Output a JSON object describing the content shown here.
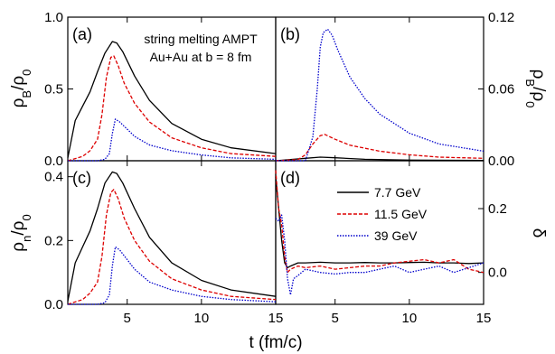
{
  "chart_data": [
    {
      "panel": "(a)",
      "type": "line",
      "ylabel": "ρ_B/ρ_0",
      "xlim": [
        1,
        15
      ],
      "ylim": [
        0,
        1.0
      ],
      "xticks": [
        5,
        10,
        15
      ],
      "yticks": [
        0.0,
        0.5,
        1.0
      ],
      "ytick_labels": [
        "0.0",
        "0.5",
        "1.0"
      ],
      "annotations": [
        "string melting AMPT",
        "Au+Au at b = 8 fm"
      ],
      "series": [
        {
          "color": "#000000",
          "style": "solid",
          "x": [
            1.0,
            1.5,
            2.0,
            2.5,
            3.0,
            3.5,
            4.0,
            4.3,
            4.7,
            5.5,
            6.5,
            8,
            10,
            12,
            15
          ],
          "y": [
            0.02,
            0.28,
            0.38,
            0.48,
            0.62,
            0.75,
            0.83,
            0.82,
            0.76,
            0.59,
            0.42,
            0.26,
            0.15,
            0.09,
            0.05
          ]
        },
        {
          "color": "#dd0000",
          "style": "dashed",
          "x": [
            1.0,
            2.0,
            2.5,
            3.0,
            3.3,
            3.6,
            3.9,
            4.1,
            4.4,
            4.8,
            5.5,
            6.5,
            8,
            10,
            12,
            15
          ],
          "y": [
            0.0,
            0.03,
            0.07,
            0.15,
            0.32,
            0.58,
            0.72,
            0.73,
            0.66,
            0.54,
            0.4,
            0.27,
            0.16,
            0.09,
            0.05,
            0.03
          ]
        },
        {
          "color": "#0000cc",
          "style": "dotted",
          "x": [
            1.0,
            3.0,
            3.5,
            3.8,
            4.0,
            4.2,
            4.5,
            5.0,
            5.5,
            6.5,
            8,
            10,
            12,
            15
          ],
          "y": [
            0.0,
            0.0,
            0.01,
            0.05,
            0.19,
            0.29,
            0.27,
            0.22,
            0.17,
            0.11,
            0.07,
            0.04,
            0.02,
            0.01
          ]
        }
      ]
    },
    {
      "panel": "(b)",
      "type": "line",
      "ylabel": "ρ_B/ρ_0",
      "xlim": [
        1,
        15
      ],
      "ylim": [
        0,
        0.12
      ],
      "xticks": [
        5,
        10,
        15
      ],
      "yticks": [
        0.0,
        0.06,
        0.12
      ],
      "ytick_labels": [
        "0.00",
        "0.06",
        "0.12"
      ],
      "series": [
        {
          "color": "#000000",
          "style": "solid",
          "x": [
            1.0,
            3.0,
            4.0,
            5.0,
            7.0,
            10,
            15
          ],
          "y": [
            0.0,
            0.002,
            0.003,
            0.0025,
            0.0012,
            0.0005,
            0.0002
          ]
        },
        {
          "color": "#dd0000",
          "style": "dashed",
          "x": [
            1.0,
            2.5,
            3.0,
            3.5,
            4.0,
            4.3,
            5.0,
            6.0,
            8,
            10,
            12,
            15
          ],
          "y": [
            0.0,
            0.001,
            0.005,
            0.014,
            0.021,
            0.022,
            0.018,
            0.013,
            0.008,
            0.005,
            0.003,
            0.002
          ]
        },
        {
          "color": "#0000cc",
          "style": "dotted",
          "x": [
            1.0,
            3.0,
            3.5,
            3.8,
            4.0,
            4.2,
            4.5,
            4.8,
            5.2,
            6.0,
            7.0,
            8,
            10,
            12,
            15
          ],
          "y": [
            0.0,
            0.0,
            0.02,
            0.06,
            0.095,
            0.107,
            0.11,
            0.105,
            0.092,
            0.07,
            0.052,
            0.039,
            0.023,
            0.014,
            0.008
          ]
        }
      ]
    },
    {
      "panel": "(c)",
      "type": "line",
      "ylabel": "ρ_n/ρ_0",
      "xlabel": "t (fm/c)",
      "xlim": [
        1,
        15
      ],
      "ylim": [
        0,
        0.45
      ],
      "xticks": [
        5,
        10,
        15
      ],
      "yticks": [
        0.0,
        0.2,
        0.4
      ],
      "ytick_labels": [
        "0.0",
        "0.2",
        "0.4"
      ],
      "series": [
        {
          "color": "#000000",
          "style": "solid",
          "x": [
            1.0,
            1.5,
            2.0,
            2.5,
            3.0,
            3.5,
            4.0,
            4.3,
            4.7,
            5.5,
            6.5,
            8,
            10,
            12,
            15
          ],
          "y": [
            0.01,
            0.13,
            0.18,
            0.23,
            0.3,
            0.38,
            0.415,
            0.41,
            0.38,
            0.3,
            0.21,
            0.13,
            0.075,
            0.045,
            0.025
          ]
        },
        {
          "color": "#dd0000",
          "style": "dashed",
          "x": [
            1.0,
            2.0,
            2.5,
            3.0,
            3.3,
            3.6,
            3.9,
            4.1,
            4.4,
            4.8,
            5.5,
            6.5,
            8,
            10,
            12,
            15
          ],
          "y": [
            0.0,
            0.015,
            0.035,
            0.07,
            0.15,
            0.28,
            0.35,
            0.36,
            0.33,
            0.27,
            0.2,
            0.135,
            0.08,
            0.045,
            0.025,
            0.015
          ]
        },
        {
          "color": "#0000cc",
          "style": "dotted",
          "x": [
            1.0,
            3.0,
            3.5,
            3.8,
            4.0,
            4.2,
            4.5,
            5.0,
            5.5,
            6.5,
            8,
            10,
            12,
            15
          ],
          "y": [
            0.0,
            0.0,
            0.005,
            0.03,
            0.12,
            0.18,
            0.17,
            0.14,
            0.11,
            0.07,
            0.045,
            0.025,
            0.015,
            0.008
          ]
        }
      ]
    },
    {
      "panel": "(d)",
      "type": "line",
      "ylabel": "δ",
      "xlim": [
        1,
        15
      ],
      "ylim": [
        -0.1,
        0.35
      ],
      "xticks": [
        5,
        10,
        15
      ],
      "yticks": [
        0.0,
        0.2
      ],
      "ytick_labels": [
        "0.0",
        "0.2"
      ],
      "legend": {
        "position": "top-right",
        "entries": [
          "7.7 GeV",
          "11.5 GeV",
          "39 GeV"
        ]
      },
      "series": [
        {
          "name": "7.7 GeV",
          "color": "#000000",
          "style": "solid",
          "x": [
            1.0,
            1.2,
            1.4,
            1.6,
            1.8,
            2.0,
            2.5,
            3,
            4,
            5,
            6,
            7,
            8,
            9,
            10,
            11,
            12,
            13,
            14,
            15
          ],
          "y": [
            0.3,
            0.2,
            0.1,
            0.03,
            0.015,
            0.02,
            0.03,
            0.03,
            0.032,
            0.03,
            0.03,
            0.031,
            0.03,
            0.03,
            0.031,
            0.032,
            0.03,
            0.03,
            0.028,
            0.03
          ]
        },
        {
          "name": "11.5 GeV",
          "color": "#dd0000",
          "style": "dashed",
          "x": [
            1.0,
            1.2,
            1.4,
            1.6,
            1.8,
            2.0,
            2.5,
            3,
            4,
            5,
            6,
            7,
            8,
            9,
            10,
            11,
            12,
            13,
            14,
            15
          ],
          "y": [
            0.32,
            0.2,
            0.15,
            0.05,
            0.0,
            0.01,
            0.02,
            0.015,
            0.02,
            0.01,
            0.015,
            0.02,
            0.02,
            0.03,
            0.035,
            0.04,
            0.03,
            0.04,
            0.01,
            0.0
          ]
        },
        {
          "name": "39 GeV",
          "color": "#0000cc",
          "style": "dotted",
          "x": [
            1.0,
            1.2,
            1.4,
            1.6,
            1.8,
            2.0,
            2.2,
            2.5,
            3,
            4,
            5,
            6,
            7,
            8,
            9,
            10,
            11,
            12,
            13,
            14,
            15
          ],
          "y": [
            0.17,
            0.16,
            0.18,
            0.1,
            -0.02,
            -0.07,
            -0.02,
            -0.01,
            0.01,
            0.0,
            -0.005,
            0.0,
            0.0,
            0.01,
            0.02,
            0.0,
            0.01,
            0.02,
            0.0,
            0.015,
            0.03
          ]
        }
      ]
    }
  ]
}
